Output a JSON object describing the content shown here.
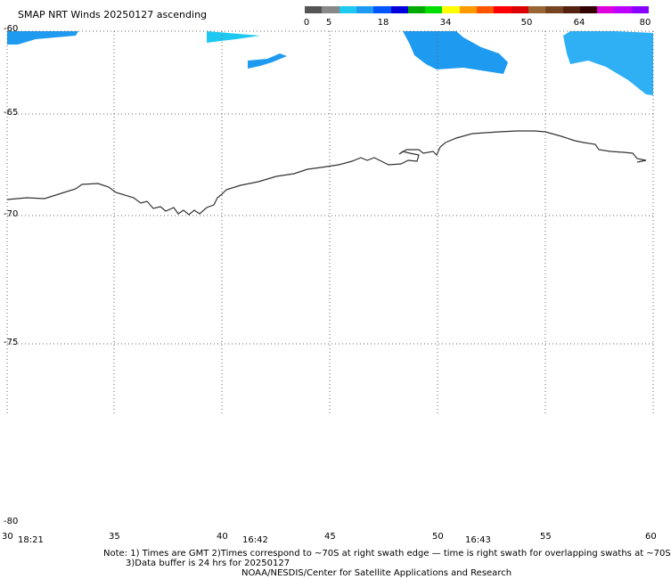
{
  "title": "SMAP NRT Winds 20250127 ascending",
  "colorbar": {
    "ticks": [
      "0",
      "5",
      "18",
      "34",
      "50",
      "64",
      "80"
    ],
    "colors": [
      "#555555",
      "#888888",
      "#1ec8f0",
      "#1e9bf0",
      "#0055ff",
      "#0000dd",
      "#00aa00",
      "#00dd00",
      "#ffff00",
      "#ff9900",
      "#ff5500",
      "#ff0000",
      "#dd0000",
      "#996633",
      "#774422",
      "#552211",
      "#330000",
      "#dd00dd",
      "#bb00ff",
      "#8800ff"
    ]
  },
  "axes": {
    "lat_labels": [
      "-60",
      "-65",
      "-70",
      "-75",
      "-80"
    ],
    "lon_labels": [
      "30",
      "35",
      "40",
      "45",
      "50",
      "55",
      "60"
    ],
    "time_labels": [
      "18:21",
      "16:42",
      "16:43"
    ]
  },
  "notes": {
    "line1": "Note: 1) Times are GMT 2)Times correspond to ~70S at right swath edge — time is right swath for overlapping swaths at ~70S",
    "line2": "3)Data buffer is 24 hrs for 20250127",
    "line3": "NOAA/NESDIS/Center for Satellite Applications and Research"
  }
}
